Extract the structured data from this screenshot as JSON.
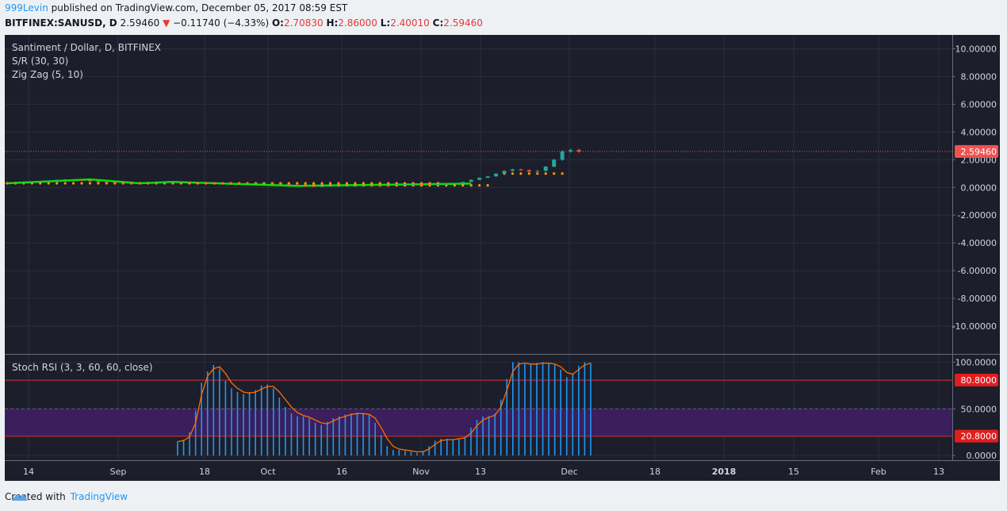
{
  "header": {
    "user": "999Levin",
    "published_text": " published on TradingView.com, December 05, 2017 08:59 EST",
    "symbol": "BITFINEX:SANUSD, D",
    "last": "2.59460",
    "change": "−0.11740 (−4.33%)",
    "o_label": "O:",
    "o_val": "2.70830",
    "h_label": "H:",
    "h_val": "2.86000",
    "l_label": "L:",
    "l_val": "2.40010",
    "c_label": "C:",
    "c_val": "2.59460"
  },
  "legend": {
    "title": "Santiment / Dollar, D, BITFINEX",
    "ind1": "S/R (30, 30)",
    "ind2": "Zig Zag (5, 10)",
    "stoch": "Stoch RSI (3, 3, 60, 60, close)"
  },
  "footer": {
    "created_with": "Created with",
    "brand": "TradingView"
  },
  "colors": {
    "background": "#1c1e2b",
    "up": "#26a69a",
    "down": "#ef5350",
    "zigzag": "#00e600",
    "sr_dots": "#ff9800",
    "stoch_k": "#2196f3",
    "stoch_d": "#ff6d00",
    "band": "#3a1f5c",
    "level": "#e01e1e"
  },
  "chart_data": [
    {
      "type": "candlestick",
      "title": "Santiment / Dollar, D, BITFINEX",
      "ylim": [
        -12,
        11
      ],
      "y_ticks": [
        "10.00000",
        "8.00000",
        "6.00000",
        "4.00000",
        "2.00000",
        "0.00000",
        "-2.00000",
        "-4.00000",
        "-6.00000",
        "-8.00000",
        "-10.00000"
      ],
      "y_tick_values": [
        10,
        8,
        6,
        4,
        2,
        0,
        -2,
        -4,
        -6,
        -8,
        -10
      ],
      "x_ticks": [
        "14",
        "Sep",
        "18",
        "Oct",
        "16",
        "Nov",
        "13",
        "Dec",
        "18",
        "2018",
        "15",
        "Feb",
        "13"
      ],
      "last_price": 2.5946,
      "last_price_label": "2.59460",
      "price": [
        0.3,
        0.32,
        0.35,
        0.4,
        0.45,
        0.5,
        0.55,
        0.58,
        0.55,
        0.5,
        0.45,
        0.4,
        0.38,
        0.35,
        0.32,
        0.3,
        0.3,
        0.32,
        0.35,
        0.38,
        0.4,
        0.4,
        0.38,
        0.36,
        0.35,
        0.34,
        0.33,
        0.32,
        0.3,
        0.28,
        0.32,
        0.35,
        0.3,
        0.25,
        0.2,
        0.15,
        0.1,
        0.08,
        0.1,
        0.12,
        0.12,
        0.13,
        0.14,
        0.15,
        0.16,
        0.18,
        0.2,
        0.22,
        0.25,
        0.26,
        0.25,
        0.24,
        0.25,
        0.26,
        0.3,
        0.4,
        0.55,
        0.7,
        0.8,
        1.0,
        1.2,
        1.3,
        1.25,
        1.15,
        1.2,
        1.5,
        2.0,
        2.6,
        2.7,
        2.59
      ],
      "sr_levels": [
        {
          "value": 0.3,
          "from": 0,
          "to": 52
        },
        {
          "value": 0.15,
          "from": 36,
          "to": 58
        },
        {
          "value": 1.0,
          "from": 60,
          "to": 67
        }
      ]
    },
    {
      "type": "line",
      "title": "Stoch RSI (3, 3, 60, 60, close)",
      "ylim": [
        -5,
        108
      ],
      "y_ticks": [
        "100.0000",
        "50.0000",
        "0.0000"
      ],
      "y_tick_values": [
        100,
        50,
        0
      ],
      "levels": [
        {
          "value": 80.8,
          "label": "80.8000"
        },
        {
          "value": 20.8,
          "label": "20.8000"
        }
      ],
      "band": [
        20.8,
        50
      ],
      "series": [
        {
          "values": [
            15,
            17,
            25,
            48,
            78,
            90,
            97,
            93,
            80,
            72,
            68,
            66,
            68,
            70,
            75,
            76,
            72,
            62,
            52,
            45,
            42,
            42,
            40,
            35,
            33,
            36,
            40,
            42,
            44,
            45,
            46,
            45,
            44,
            35,
            22,
            10,
            6,
            6,
            5,
            4,
            3,
            5,
            10,
            16,
            18,
            18,
            17,
            18,
            20,
            30,
            38,
            42,
            42,
            45,
            60,
            82,
            100,
            100,
            98,
            98,
            99,
            100,
            99,
            97,
            92,
            84,
            88,
            96,
            100,
            99
          ]
        },
        {
          "values": [
            15,
            16,
            20,
            35,
            65,
            85,
            93,
            95,
            88,
            78,
            72,
            68,
            67,
            68,
            71,
            74,
            74,
            68,
            60,
            52,
            46,
            43,
            41,
            38,
            35,
            34,
            37,
            40,
            42,
            44,
            45,
            45,
            44,
            40,
            30,
            18,
            10,
            7,
            6,
            5,
            4,
            4,
            7,
            12,
            16,
            17,
            17,
            18,
            19,
            24,
            32,
            38,
            41,
            43,
            52,
            70,
            90,
            98,
            99,
            98,
            98,
            99,
            99,
            98,
            95,
            89,
            87,
            92,
            97,
            99
          ]
        }
      ],
      "series_to": 69
    }
  ]
}
